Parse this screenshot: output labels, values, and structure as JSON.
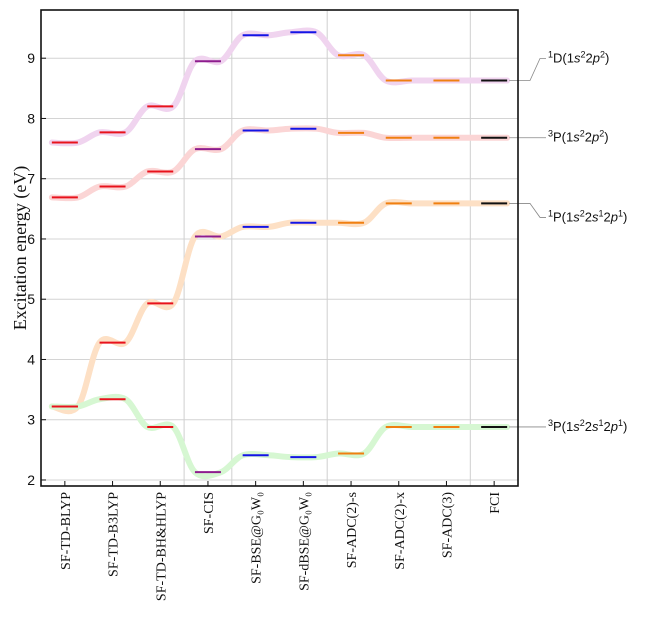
{
  "chart_data": {
    "type": "line",
    "title": "",
    "xlabel": "",
    "ylabel": "Excitation energy (eV)",
    "ylim": [
      1.9,
      9.8
    ],
    "yticks": [
      2,
      3,
      4,
      5,
      6,
      7,
      8,
      9
    ],
    "grid": true,
    "methods": [
      {
        "label": "SF-TD-BLYP",
        "color": "#e8121c"
      },
      {
        "label": "SF-TD-B3LYP",
        "color": "#e8121c"
      },
      {
        "label": "SF-TD-BH&HLYP",
        "color": "#e8121c"
      },
      {
        "label": "SF-CIS",
        "color": "#8e1c8e"
      },
      {
        "label": "SF-BSE@G₀W₀",
        "color": "#1414e6"
      },
      {
        "label": "SF-dBSE@G₀W₀",
        "color": "#1414e6"
      },
      {
        "label": "SF-ADC(2)-s",
        "color": "#f07f10"
      },
      {
        "label": "SF-ADC(2)-x",
        "color": "#f07f10"
      },
      {
        "label": "SF-ADC(3)",
        "color": "#f07f10"
      },
      {
        "label": "FCI",
        "color": "#111111"
      }
    ],
    "group_separators_after": [
      2,
      3,
      5,
      8
    ],
    "series": [
      {
        "label_parts": [
          {
            "t": "1",
            "sup": true
          },
          {
            "t": "D(1"
          },
          {
            "t": "s",
            "i": true
          },
          {
            "t": "2",
            "sup": true
          },
          {
            "t": "2"
          },
          {
            "t": "p",
            "i": true
          },
          {
            "t": "2",
            "sup": true
          },
          {
            "t": ")"
          }
        ],
        "line_color": "#f0d4ef",
        "values": [
          7.6,
          7.77,
          8.2,
          8.95,
          9.38,
          9.43,
          9.05,
          8.63,
          8.63,
          8.63
        ]
      },
      {
        "label_parts": [
          {
            "t": "3",
            "sup": true
          },
          {
            "t": "P(1"
          },
          {
            "t": "s",
            "i": true
          },
          {
            "t": "2",
            "sup": true
          },
          {
            "t": "2"
          },
          {
            "t": "p",
            "i": true
          },
          {
            "t": "2",
            "sup": true
          },
          {
            "t": ")"
          }
        ],
        "line_color": "#fbd5d5",
        "values": [
          6.69,
          6.87,
          7.12,
          7.49,
          7.8,
          7.83,
          7.76,
          7.68,
          7.68,
          7.68
        ]
      },
      {
        "label_parts": [
          {
            "t": "1",
            "sup": true
          },
          {
            "t": "P(1"
          },
          {
            "t": "s",
            "i": true
          },
          {
            "t": "2",
            "sup": true
          },
          {
            "t": "2"
          },
          {
            "t": "s",
            "i": true
          },
          {
            "t": "1",
            "sup": true
          },
          {
            "t": "2"
          },
          {
            "t": "p",
            "i": true
          },
          {
            "t": "1",
            "sup": true
          },
          {
            "t": ")"
          }
        ],
        "line_color": "#fde0c5",
        "values": [
          3.22,
          4.28,
          4.93,
          6.04,
          6.2,
          6.27,
          6.27,
          6.59,
          6.59,
          6.59
        ]
      },
      {
        "label_parts": [
          {
            "t": "3",
            "sup": true
          },
          {
            "t": "P(1"
          },
          {
            "t": "s",
            "i": true
          },
          {
            "t": "2",
            "sup": true
          },
          {
            "t": "2"
          },
          {
            "t": "s",
            "i": true
          },
          {
            "t": "1",
            "sup": true
          },
          {
            "t": "2"
          },
          {
            "t": "p",
            "i": true
          },
          {
            "t": "1",
            "sup": true
          },
          {
            "t": ")"
          }
        ],
        "line_color": "#d6f7d2",
        "values": [
          3.22,
          3.34,
          2.88,
          2.13,
          2.41,
          2.38,
          2.44,
          2.88,
          2.88,
          2.88
        ]
      }
    ]
  }
}
